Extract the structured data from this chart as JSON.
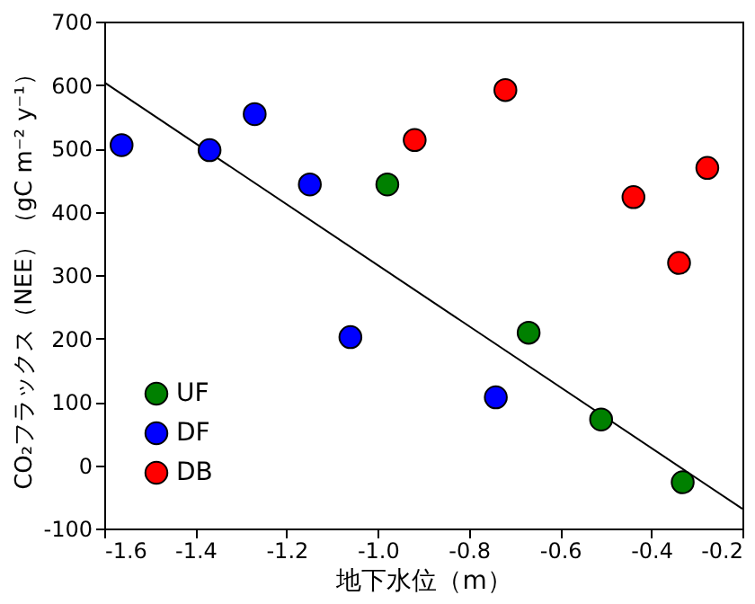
{
  "chart_data": {
    "type": "scatter",
    "xlabel": "地下水位（m）",
    "ylabel": "CO₂フラックス（NEE）（gC m⁻² y⁻¹）",
    "series": [
      {
        "name": "UF",
        "color": "#008000",
        "x": [
          -0.979,
          -0.669,
          -0.51,
          -0.331
        ],
        "values": [
          443,
          209,
          72,
          -27
        ]
      },
      {
        "name": "DF",
        "color": "#0000ff",
        "x": [
          -1.562,
          -1.369,
          -1.27,
          -1.149,
          -1.06,
          -0.741
        ],
        "values": [
          505,
          497,
          554,
          443,
          202,
          107
        ]
      },
      {
        "name": "DB",
        "color": "#ff0000",
        "x": [
          -0.919,
          -0.72,
          -0.439,
          -0.339,
          -0.277
        ],
        "values": [
          513,
          592,
          423,
          319,
          469
        ]
      },
      {
        "type": "line",
        "marker": "none",
        "color": "#000000",
        "x": [
          -1.6,
          -0.2
        ],
        "values": [
          604,
          -69
        ]
      }
    ],
    "xlim": [
      -1.6,
      -0.2
    ],
    "xticks": [
      -1.6,
      -1.4,
      -1.2,
      {
        "value": -1.0,
        "label": "-1.0"
      },
      -0.8,
      -0.6,
      -0.4,
      -0.2
    ],
    "ylim": [
      -100,
      700
    ],
    "yticks": [
      -100,
      0,
      100,
      200,
      300,
      400,
      500,
      600,
      700
    ],
    "marker": "circle",
    "grid": false,
    "legend": "bottom left"
  }
}
